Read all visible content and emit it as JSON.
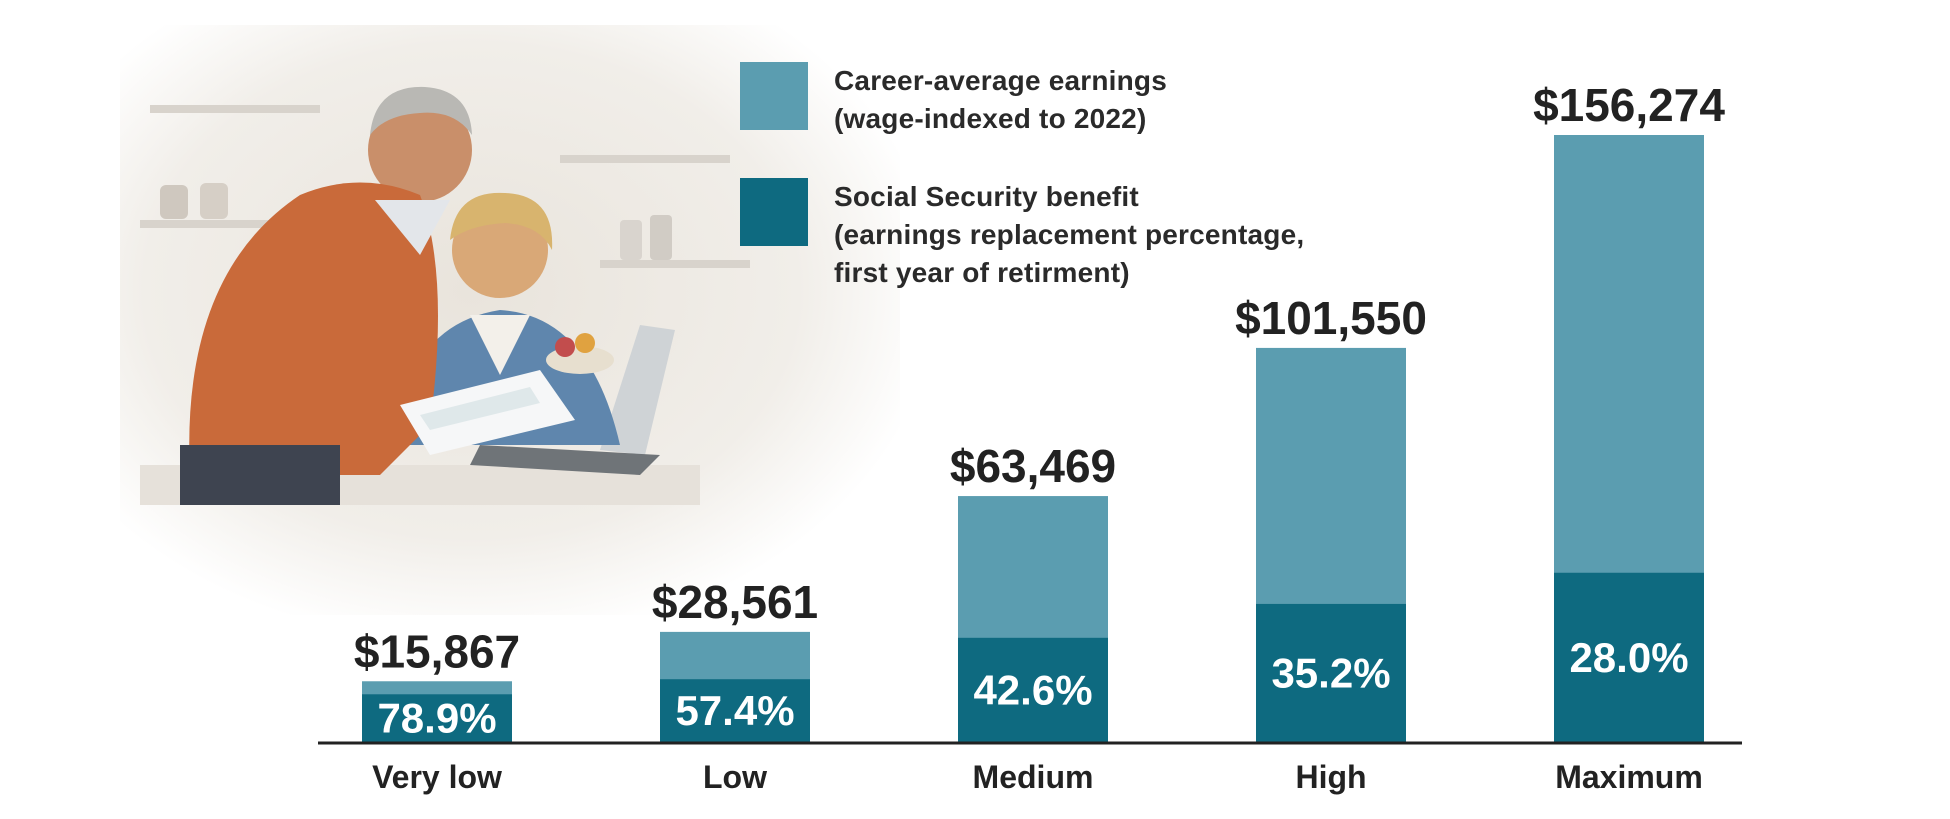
{
  "chart_data": {
    "type": "bar",
    "categories": [
      "Very low",
      "Low",
      "Medium",
      "High",
      "Maximum"
    ],
    "series": [
      {
        "name": "Career-average earnings (wage-indexed to 2022)",
        "values": [
          15867,
          28561,
          63469,
          101550,
          156274
        ],
        "labels": [
          "$15,867",
          "$28,561",
          "$63,469",
          "$101,550",
          "$156,274"
        ]
      },
      {
        "name": "Social Security benefit (earnings replacement percentage, first year of retirment)",
        "values": [
          12519,
          16394,
          27038,
          35746,
          43757
        ],
        "labels": [
          "78.9%",
          "57.4%",
          "42.6%",
          "35.2%",
          "28.0%"
        ]
      }
    ],
    "replacement_percent": [
      78.9,
      57.4,
      42.6,
      35.2,
      28.0
    ],
    "title": "",
    "xlabel": "",
    "ylabel": "",
    "ylim": [
      0,
      156274
    ],
    "grid": false,
    "legend_position": "top-center",
    "colors": {
      "earnings": "#5b9db0",
      "benefit": "#0e6a80",
      "text": "#222222",
      "baseline": "#222222"
    }
  },
  "legend": {
    "earnings": [
      "Career-average earnings",
      "(wage-indexed to 2022)"
    ],
    "benefit": [
      "Social Security benefit",
      "(earnings replacement percentage,",
      "first year of retirment)"
    ]
  }
}
